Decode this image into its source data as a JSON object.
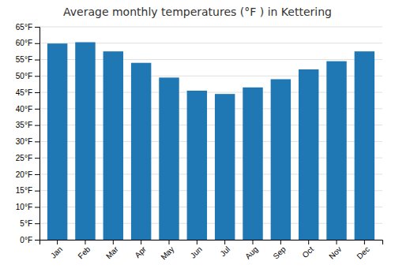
{
  "chart_data": {
    "type": "bar",
    "title": "Average monthly temperatures (°F ) in Kettering",
    "categories": [
      "Jan",
      "Feb",
      "Mar",
      "Apr",
      "May",
      "Jun",
      "Jul",
      "Aug",
      "Sep",
      "Oct",
      "Nov",
      "Dec"
    ],
    "values": [
      59.9,
      60.3,
      57.5,
      54.0,
      49.5,
      45.5,
      44.5,
      46.5,
      49.0,
      52.0,
      54.5,
      57.5
    ],
    "ylim": [
      0,
      65
    ],
    "yticks": [
      {
        "value": 0,
        "label": "0°F"
      },
      {
        "value": 5,
        "label": "5°F"
      },
      {
        "value": 10,
        "label": "10°F"
      },
      {
        "value": 15,
        "label": "15°F"
      },
      {
        "value": 20,
        "label": "20°F"
      },
      {
        "value": 25,
        "label": "25°F"
      },
      {
        "value": 30,
        "label": "30°F"
      },
      {
        "value": 35,
        "label": "35°F"
      },
      {
        "value": 40,
        "label": "40°F"
      },
      {
        "value": 45,
        "label": "45°F"
      },
      {
        "value": 50,
        "label": "50°F"
      },
      {
        "value": 55,
        "label": "55°F"
      },
      {
        "value": 60,
        "label": "60°F"
      },
      {
        "value": 65,
        "label": "65°F"
      }
    ],
    "grid": true
  }
}
